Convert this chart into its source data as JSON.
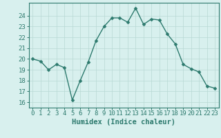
{
  "x": [
    0,
    1,
    2,
    3,
    4,
    5,
    6,
    7,
    8,
    9,
    10,
    11,
    12,
    13,
    14,
    15,
    16,
    17,
    18,
    19,
    20,
    21,
    22,
    23
  ],
  "y": [
    20.0,
    19.8,
    19.0,
    19.5,
    19.2,
    16.2,
    18.0,
    19.7,
    21.7,
    23.0,
    23.8,
    23.8,
    23.4,
    24.7,
    23.2,
    23.7,
    23.6,
    22.3,
    21.4,
    19.5,
    19.1,
    18.8,
    17.5,
    17.3
  ],
  "line_color": "#2d7a6e",
  "marker": "D",
  "marker_size": 2.5,
  "line_width": 1.0,
  "bg_color": "#d8f0ee",
  "grid_color": "#b8d8d4",
  "xlabel": "Humidex (Indice chaleur)",
  "xlabel_fontsize": 7.5,
  "ylabel_ticks": [
    16,
    17,
    18,
    19,
    20,
    21,
    22,
    23,
    24
  ],
  "xlim": [
    -0.5,
    23.5
  ],
  "ylim": [
    15.5,
    25.2
  ],
  "tick_fontsize": 6.5,
  "spine_color": "#2d7a6e",
  "grid_line_style": "-",
  "grid_alpha": 1.0,
  "grid_linewidth": 0.5
}
